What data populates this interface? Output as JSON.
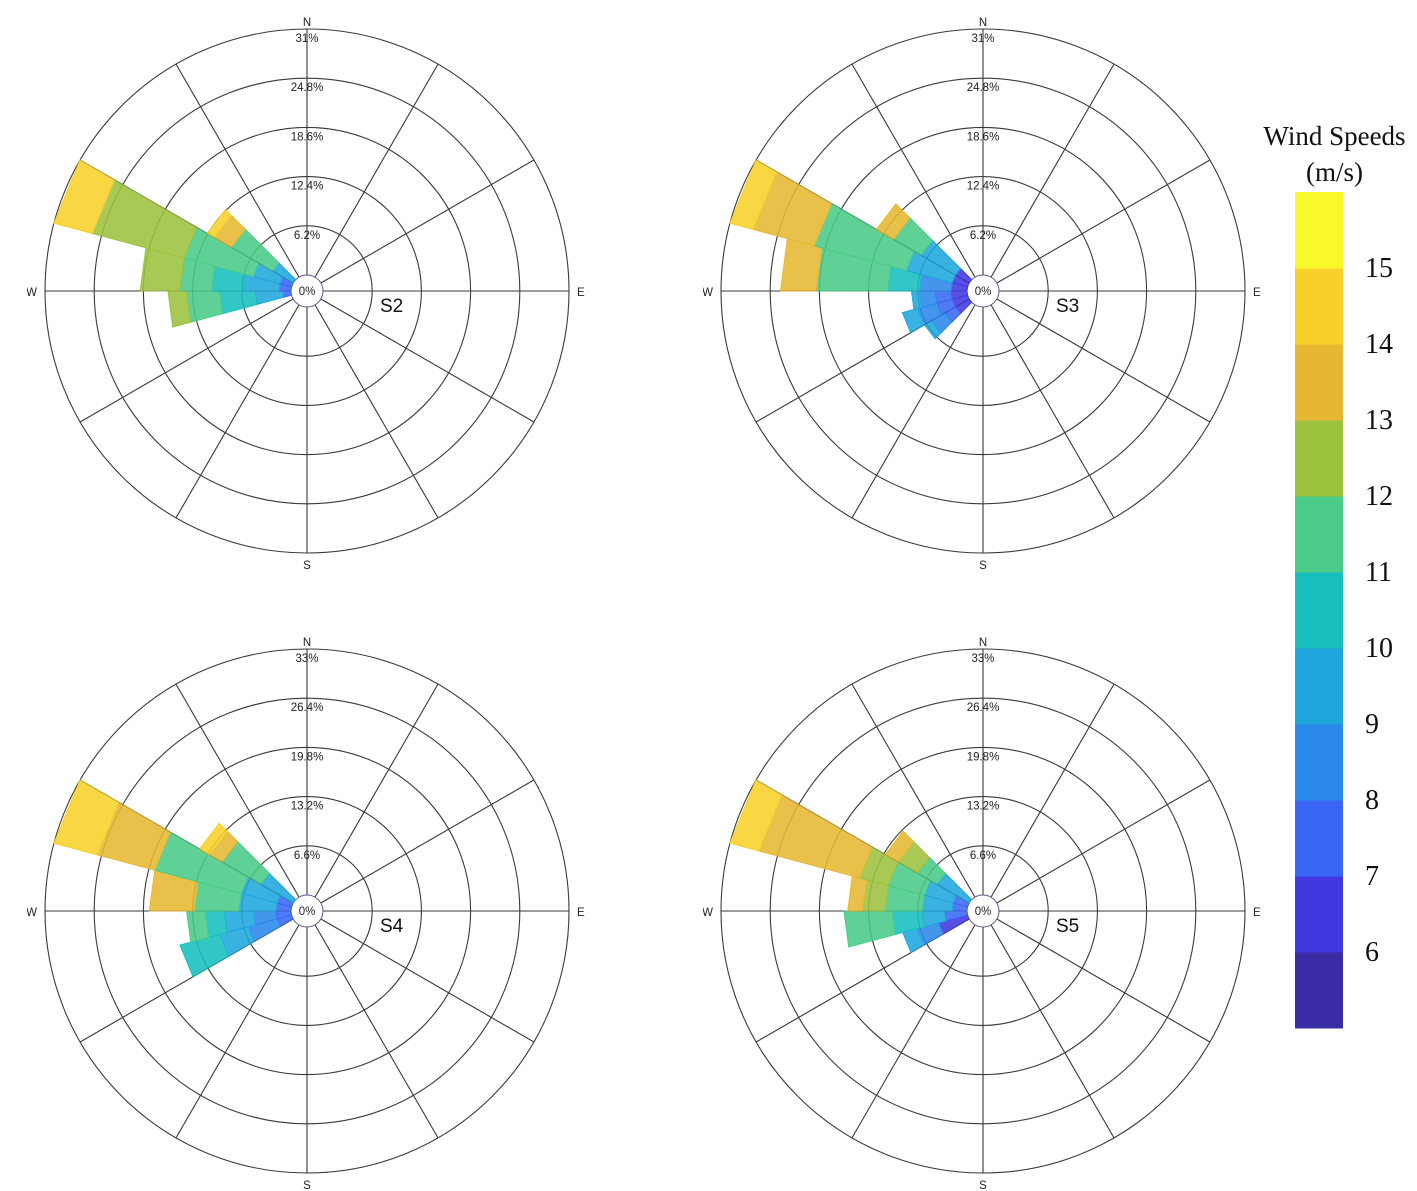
{
  "chart_data": [
    {
      "type": "wind-rose",
      "label": "S2",
      "ticks": [
        "0%",
        "6.2%",
        "12.4%",
        "18.6%",
        "24.8%",
        "31%"
      ],
      "rmax": 31,
      "directions": [
        "N",
        "E",
        "S",
        "W"
      ],
      "sectors": [
        {
          "direction": 262.5,
          "bins": [
            {
              "speed": 7,
              "cum": 1
            },
            {
              "speed": 9,
              "cum": 4.5
            },
            {
              "speed": 10,
              "cum": 9
            },
            {
              "speed": 11,
              "cum": 13.2
            },
            {
              "speed": 12,
              "cum": 15.5
            }
          ]
        },
        {
          "direction": 277.5,
          "bins": [
            {
              "speed": 7,
              "cum": 1.5
            },
            {
              "speed": 9,
              "cum": 6
            },
            {
              "speed": 10,
              "cum": 10
            },
            {
              "speed": 11,
              "cum": 14
            },
            {
              "speed": 12,
              "cum": 19
            }
          ]
        },
        {
          "direction": 292.5,
          "bins": [
            {
              "speed": 7,
              "cum": 1.5
            },
            {
              "speed": 9,
              "cum": 5
            },
            {
              "speed": 11,
              "cum": 14
            },
            {
              "speed": 12,
              "cum": 26
            },
            {
              "speed": 14,
              "cum": 31
            }
          ]
        },
        {
          "direction": 307.5,
          "bins": [
            {
              "speed": 9,
              "cum": 3
            },
            {
              "speed": 11,
              "cum": 9
            },
            {
              "speed": 13,
              "cum": 11.5
            },
            {
              "speed": 14,
              "cum": 12.5
            }
          ]
        }
      ]
    },
    {
      "type": "wind-rose",
      "label": "S3",
      "ticks": [
        "0%",
        "6.2%",
        "12.4%",
        "18.6%",
        "24.8%",
        "31%"
      ],
      "rmax": 31,
      "directions": [
        "N",
        "E",
        "S",
        "W"
      ],
      "sectors": [
        {
          "direction": 232.5,
          "bins": [
            {
              "speed": 6,
              "cum": 2
            },
            {
              "speed": 7,
              "cum": 3.5
            },
            {
              "speed": 8,
              "cum": 5.5
            },
            {
              "speed": 9,
              "cum": 6.5
            }
          ]
        },
        {
          "direction": 247.5,
          "bins": [
            {
              "speed": 6,
              "cum": 2
            },
            {
              "speed": 7,
              "cum": 4
            },
            {
              "speed": 8,
              "cum": 6.5
            },
            {
              "speed": 9,
              "cum": 8.5
            }
          ]
        },
        {
          "direction": 262.5,
          "bins": [
            {
              "speed": 6,
              "cum": 2
            },
            {
              "speed": 7,
              "cum": 4
            },
            {
              "speed": 8,
              "cum": 6
            },
            {
              "speed": 9,
              "cum": 7
            }
          ]
        },
        {
          "direction": 277.5,
          "bins": [
            {
              "speed": 6,
              "cum": 2
            },
            {
              "speed": 8,
              "cum": 6
            },
            {
              "speed": 10,
              "cum": 10
            },
            {
              "speed": 11,
              "cum": 19
            },
            {
              "speed": 13,
              "cum": 23.5
            }
          ]
        },
        {
          "direction": 292.5,
          "bins": [
            {
              "speed": 6,
              "cum": 2
            },
            {
              "speed": 9,
              "cum": 8
            },
            {
              "speed": 11,
              "cum": 20
            },
            {
              "speed": 13,
              "cum": 28
            },
            {
              "speed": 14,
              "cum": 31
            }
          ]
        },
        {
          "direction": 307.5,
          "bins": [
            {
              "speed": 6,
              "cum": 2
            },
            {
              "speed": 9,
              "cum": 7
            },
            {
              "speed": 11,
              "cum": 11
            },
            {
              "speed": 13,
              "cum": 13.5
            }
          ]
        }
      ]
    },
    {
      "type": "wind-rose",
      "label": "S4",
      "ticks": [
        "0%",
        "6.6%",
        "13.2%",
        "19.8%",
        "26.4%",
        "33%"
      ],
      "rmax": 33,
      "directions": [
        "N",
        "E",
        "S",
        "W"
      ],
      "sectors": [
        {
          "direction": 247.5,
          "bins": [
            {
              "speed": 7,
              "cum": 2
            },
            {
              "speed": 8,
              "cum": 6
            },
            {
              "speed": 9,
              "cum": 10
            },
            {
              "speed": 10,
              "cum": 15.5
            }
          ]
        },
        {
          "direction": 262.5,
          "bins": [
            {
              "speed": 7,
              "cum": 2
            },
            {
              "speed": 8,
              "cum": 5
            },
            {
              "speed": 9,
              "cum": 9
            },
            {
              "speed": 10,
              "cum": 11.5
            },
            {
              "speed": 11,
              "cum": 14
            }
          ]
        },
        {
          "direction": 277.5,
          "bins": [
            {
              "speed": 7,
              "cum": 2
            },
            {
              "speed": 9,
              "cum": 7
            },
            {
              "speed": 11,
              "cum": 13
            },
            {
              "speed": 13,
              "cum": 19
            }
          ]
        },
        {
          "direction": 292.5,
          "bins": [
            {
              "speed": 7,
              "cum": 2
            },
            {
              "speed": 9,
              "cum": 7
            },
            {
              "speed": 11,
              "cum": 19
            },
            {
              "speed": 13,
              "cum": 27
            },
            {
              "speed": 14,
              "cum": 33
            }
          ]
        },
        {
          "direction": 307.5,
          "bins": [
            {
              "speed": 9,
              "cum": 5
            },
            {
              "speed": 11,
              "cum": 11
            },
            {
              "speed": 13,
              "cum": 13
            },
            {
              "speed": 14,
              "cum": 14.5
            }
          ]
        }
      ]
    },
    {
      "type": "wind-rose",
      "label": "S5",
      "ticks": [
        "0%",
        "6.6%",
        "13.2%",
        "19.8%",
        "26.4%",
        "33%"
      ],
      "rmax": 33,
      "directions": [
        "N",
        "E",
        "S",
        "W"
      ],
      "sectors": [
        {
          "direction": 247.5,
          "bins": [
            {
              "speed": 6,
              "cum": 4
            },
            {
              "speed": 8,
              "cum": 7
            },
            {
              "speed": 9,
              "cum": 9
            }
          ]
        },
        {
          "direction": 262.5,
          "bins": [
            {
              "speed": 7,
              "cum": 3
            },
            {
              "speed": 9,
              "cum": 6
            },
            {
              "speed": 10,
              "cum": 10
            },
            {
              "speed": 11,
              "cum": 16.5
            }
          ]
        },
        {
          "direction": 277.5,
          "bins": [
            {
              "speed": 7,
              "cum": 2
            },
            {
              "speed": 9,
              "cum": 6
            },
            {
              "speed": 11,
              "cum": 11
            },
            {
              "speed": 12,
              "cum": 14
            },
            {
              "speed": 13,
              "cum": 16
            }
          ]
        },
        {
          "direction": 292.5,
          "bins": [
            {
              "speed": 7,
              "cum": 2
            },
            {
              "speed": 9,
              "cum": 6
            },
            {
              "speed": 11,
              "cum": 11
            },
            {
              "speed": 12,
              "cum": 15
            },
            {
              "speed": 13,
              "cum": 29
            },
            {
              "speed": 14,
              "cum": 33
            }
          ]
        },
        {
          "direction": 307.5,
          "bins": [
            {
              "speed": 9,
              "cum": 5
            },
            {
              "speed": 11,
              "cum": 8
            },
            {
              "speed": 12,
              "cum": 11
            },
            {
              "speed": 13,
              "cum": 13
            }
          ]
        }
      ]
    }
  ],
  "colorbar": {
    "title_line1": "Wind Speeds",
    "title_line2": "(m/s)",
    "tick_labels": [
      "6",
      "7",
      "8",
      "9",
      "10",
      "11",
      "12",
      "13",
      "14",
      "15"
    ],
    "bands": [
      {
        "speed": 5,
        "color": "#3a2ca5"
      },
      {
        "speed": 6,
        "color": "#4138e0"
      },
      {
        "speed": 7,
        "color": "#3a66f5"
      },
      {
        "speed": 8,
        "color": "#2a88ea"
      },
      {
        "speed": 9,
        "color": "#1ea6dd"
      },
      {
        "speed": 10,
        "color": "#16bfbe"
      },
      {
        "speed": 11,
        "color": "#4acb87"
      },
      {
        "speed": 12,
        "color": "#9cc23e"
      },
      {
        "speed": 13,
        "color": "#e6b831"
      },
      {
        "speed": 14,
        "color": "#f7d02a"
      },
      {
        "speed": 15,
        "color": "#f8f82a"
      }
    ]
  }
}
